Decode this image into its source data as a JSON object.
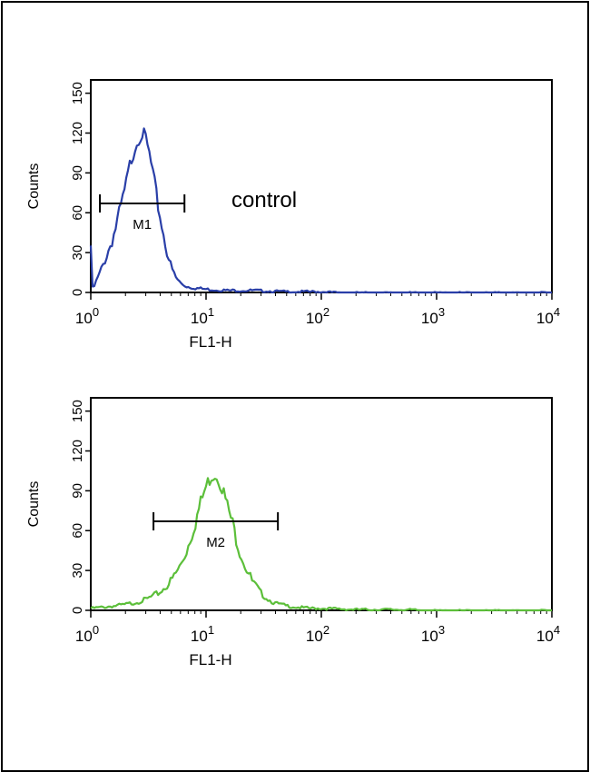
{
  "chart_data": [
    {
      "type": "line",
      "panel": "top",
      "xlabel": "FL1-H",
      "ylabel": "Counts",
      "xscale": "log",
      "xlim": [
        1,
        10000
      ],
      "ylim": [
        0,
        160
      ],
      "yticks": [
        0,
        30,
        60,
        90,
        120,
        150
      ],
      "xticks": [
        {
          "base": "10",
          "exp": "0"
        },
        {
          "base": "10",
          "exp": "1"
        },
        {
          "base": "10",
          "exp": "2"
        },
        {
          "base": "10",
          "exp": "3"
        },
        {
          "base": "10",
          "exp": "4"
        }
      ],
      "annotation": "control",
      "gate": {
        "label": "M1",
        "x_range": [
          1.2,
          6.5
        ],
        "y": 67
      },
      "color": "#2a3fa8",
      "series": [
        {
          "x": [
            1.0,
            1.02,
            1.05,
            1.1,
            1.15,
            1.25,
            1.4,
            1.6,
            1.8,
            2.0,
            2.2,
            2.4,
            2.6,
            2.8,
            3.0,
            3.2,
            3.5,
            3.8,
            4.2,
            4.6,
            5.0,
            5.5,
            6.0,
            6.5,
            7.0,
            8.0,
            10.0,
            15.0,
            25.0,
            50.0,
            100.0,
            150.0,
            300.0,
            1000.0,
            10000.0
          ],
          "y": [
            38,
            5,
            3,
            8,
            12,
            20,
            32,
            48,
            65,
            82,
            100,
            112,
            120,
            123,
            118,
            108,
            90,
            70,
            50,
            33,
            20,
            12,
            8,
            6,
            5,
            4,
            3,
            2,
            2,
            1,
            1,
            0,
            0,
            0,
            0
          ]
        }
      ]
    },
    {
      "type": "line",
      "panel": "bottom",
      "xlabel": "FL1-H",
      "ylabel": "Counts",
      "xscale": "log",
      "xlim": [
        1,
        10000
      ],
      "ylim": [
        0,
        160
      ],
      "yticks": [
        0,
        30,
        60,
        90,
        120,
        150
      ],
      "xticks": [
        {
          "base": "10",
          "exp": "0"
        },
        {
          "base": "10",
          "exp": "1"
        },
        {
          "base": "10",
          "exp": "2"
        },
        {
          "base": "10",
          "exp": "3"
        },
        {
          "base": "10",
          "exp": "4"
        }
      ],
      "annotation": "",
      "gate": {
        "label": "M2",
        "x_range": [
          3.5,
          42
        ],
        "y": 67
      },
      "color": "#5cbf3a",
      "series": [
        {
          "x": [
            1.0,
            1.3,
            1.6,
            2.0,
            2.5,
            3.0,
            3.5,
            4.0,
            5.0,
            6.0,
            7.0,
            8.0,
            9.0,
            10.0,
            11.0,
            12.0,
            13.0,
            14.0,
            15.0,
            17.0,
            19.0,
            22.0,
            25.0,
            30.0,
            35.0,
            40.0,
            50.0,
            60.0,
            80.0,
            100.0,
            200.0,
            500.0,
            1000.0,
            10000.0
          ],
          "y": [
            2,
            3,
            4,
            5,
            7,
            9,
            12,
            15,
            24,
            36,
            52,
            68,
            84,
            96,
            104,
            106,
            102,
            94,
            84,
            68,
            52,
            36,
            24,
            14,
            9,
            6,
            4,
            3,
            2,
            2,
            1,
            1,
            0,
            0
          ]
        }
      ]
    }
  ]
}
